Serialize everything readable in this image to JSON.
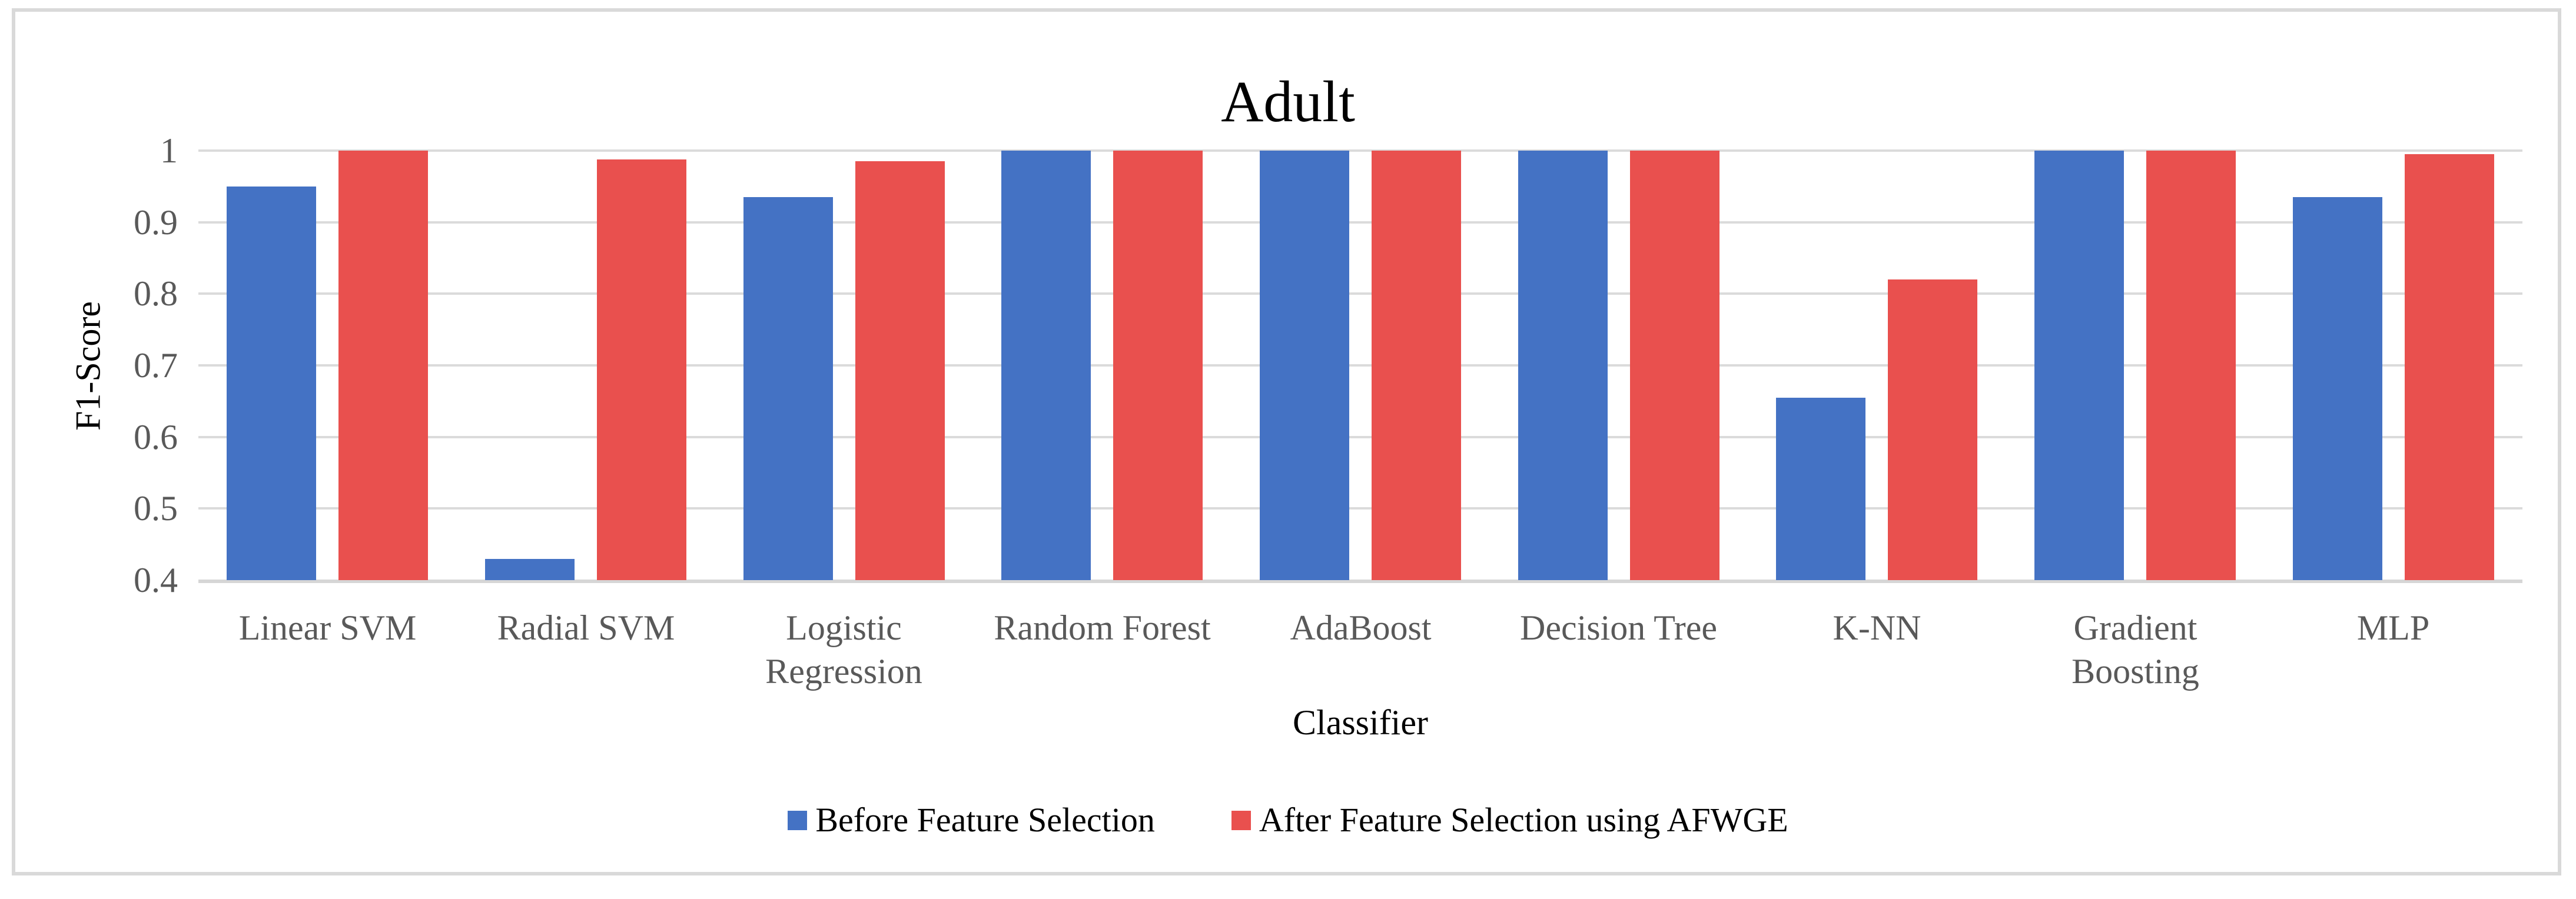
{
  "figure": {
    "background": "#FFFFFF",
    "frame_color": "#D9D9D9"
  },
  "chart_data": {
    "type": "bar",
    "title": "Adult",
    "xlabel": "Classifier",
    "ylabel": "F1-Score",
    "ylim": [
      0.4,
      1.0
    ],
    "ytick_step": 0.1,
    "ytick_labels": [
      "1",
      "0.9",
      "0.8",
      "0.7",
      "0.6",
      "0.5",
      "0.4"
    ],
    "grid": true,
    "legend_position": "bottom-center",
    "categories": [
      "Linear SVM",
      "Radial SVM",
      "Logistic Regression",
      "Random Forest",
      "AdaBoost",
      "Decision Tree",
      "K-NN",
      "Gradient Boosting",
      "MLP"
    ],
    "series": [
      {
        "name": "Before Feature Selection",
        "color": "#4472C4",
        "values": [
          0.95,
          0.43,
          0.935,
          1.0,
          1.0,
          1.0,
          0.655,
          1.0,
          0.935
        ]
      },
      {
        "name": "After Feature Selection using AFWGE",
        "color": "#E9504E",
        "values": [
          1.0,
          0.988,
          0.985,
          1.0,
          1.0,
          1.0,
          0.82,
          1.0,
          0.995
        ]
      }
    ],
    "colors": {
      "tick_label": "#595959",
      "gridline": "#DBDBDB",
      "axis_line": "#D6D6D6",
      "title_text": "#000000"
    }
  }
}
